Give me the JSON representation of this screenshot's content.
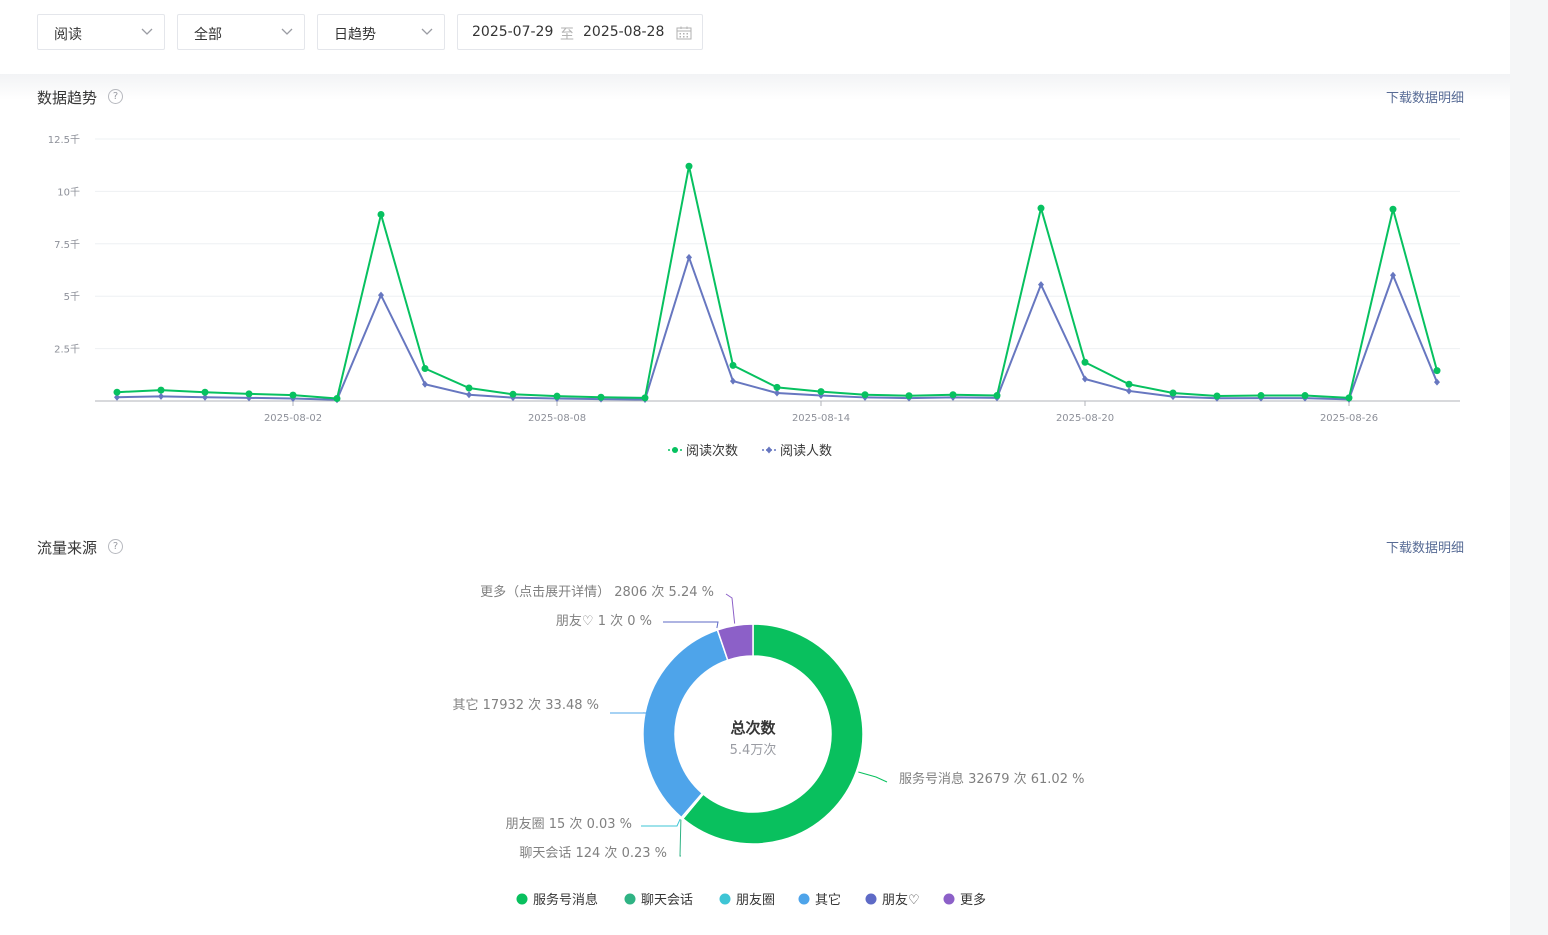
{
  "filters": {
    "metric": "阅读",
    "scope": "全部",
    "granularity": "日趋势",
    "date_start": "2025-07-29",
    "date_sep": "至",
    "date_end": "2025-08-28"
  },
  "trend_section": {
    "title": "数据趋势",
    "help": "?",
    "download": "下载数据明细"
  },
  "source_section": {
    "title": "流量来源",
    "help": "?",
    "download": "下载数据明细"
  },
  "colors": {
    "reads": "#07c160",
    "readers": "#6777c0",
    "service_msg": "#09c05e",
    "chat": "#2fb384",
    "moments": "#3ec5d5",
    "other": "#4ea4ea",
    "friend": "#5e6ac6",
    "more": "#8c60c8"
  },
  "chart_data": [
    {
      "type": "line",
      "ylim": [
        0,
        12500
      ],
      "yticks": [
        {
          "value": 2500,
          "label": "2.5千"
        },
        {
          "value": 5000,
          "label": "5千"
        },
        {
          "value": 7500,
          "label": "7.5千"
        },
        {
          "value": 10000,
          "label": "10千"
        },
        {
          "value": 12500,
          "label": "12.5千"
        }
      ],
      "x": [
        "2025-07-29",
        "2025-07-30",
        "2025-07-31",
        "2025-08-01",
        "2025-08-02",
        "2025-08-03",
        "2025-08-04",
        "2025-08-05",
        "2025-08-06",
        "2025-08-07",
        "2025-08-08",
        "2025-08-09",
        "2025-08-10",
        "2025-08-11",
        "2025-08-12",
        "2025-08-13",
        "2025-08-14",
        "2025-08-15",
        "2025-08-16",
        "2025-08-17",
        "2025-08-18",
        "2025-08-19",
        "2025-08-20",
        "2025-08-21",
        "2025-08-22",
        "2025-08-23",
        "2025-08-24",
        "2025-08-25",
        "2025-08-26",
        "2025-08-27",
        "2025-08-28"
      ],
      "xtick_labels": [
        "2025-08-02",
        "2025-08-08",
        "2025-08-14",
        "2025-08-20",
        "2025-08-26"
      ],
      "grid": true,
      "legend_position": "bottom-center",
      "series": [
        {
          "name": "阅读次数",
          "color_key": "reads",
          "marker": "circle",
          "values": [
            420,
            520,
            420,
            340,
            280,
            120,
            8900,
            1550,
            620,
            320,
            230,
            180,
            150,
            11200,
            1700,
            650,
            450,
            300,
            250,
            300,
            260,
            9200,
            1850,
            800,
            380,
            240,
            260,
            260,
            150,
            9150,
            1450
          ]
        },
        {
          "name": "阅读人数",
          "color_key": "readers",
          "marker": "diamond",
          "values": [
            180,
            220,
            180,
            150,
            120,
            60,
            5050,
            800,
            300,
            160,
            120,
            90,
            70,
            6850,
            950,
            380,
            260,
            170,
            140,
            170,
            150,
            5550,
            1050,
            480,
            210,
            130,
            140,
            140,
            80,
            6000,
            900
          ]
        }
      ]
    },
    {
      "type": "pie",
      "variant": "donut",
      "center_title": "总次数",
      "center_value": "5.4万次",
      "slices": [
        {
          "name": "服务号消息",
          "count": 32679,
          "percent": 61.02,
          "color_key": "service_msg",
          "label": "服务号消息 32679 次 61.02 %"
        },
        {
          "name": "聊天会话",
          "count": 124,
          "percent": 0.23,
          "color_key": "chat",
          "label": "聊天会话 124 次 0.23 %"
        },
        {
          "name": "朋友圈",
          "count": 15,
          "percent": 0.03,
          "color_key": "moments",
          "label": "朋友圈 15 次 0.03 %"
        },
        {
          "name": "其它",
          "count": 17932,
          "percent": 33.48,
          "color_key": "other",
          "label": "其它 17932 次 33.48 %"
        },
        {
          "name": "朋友♡",
          "count": 1,
          "percent": 0,
          "color_key": "friend",
          "label": "朋友♡ 1 次 0 %"
        },
        {
          "name": "更多",
          "count": 2806,
          "percent": 5.24,
          "color_key": "more",
          "label": "更多（点击展开详情） 2806 次 5.24 %"
        }
      ],
      "legend": [
        "服务号消息",
        "聊天会话",
        "朋友圈",
        "其它",
        "朋友♡",
        "更多"
      ],
      "legend_position": "bottom-center"
    }
  ]
}
